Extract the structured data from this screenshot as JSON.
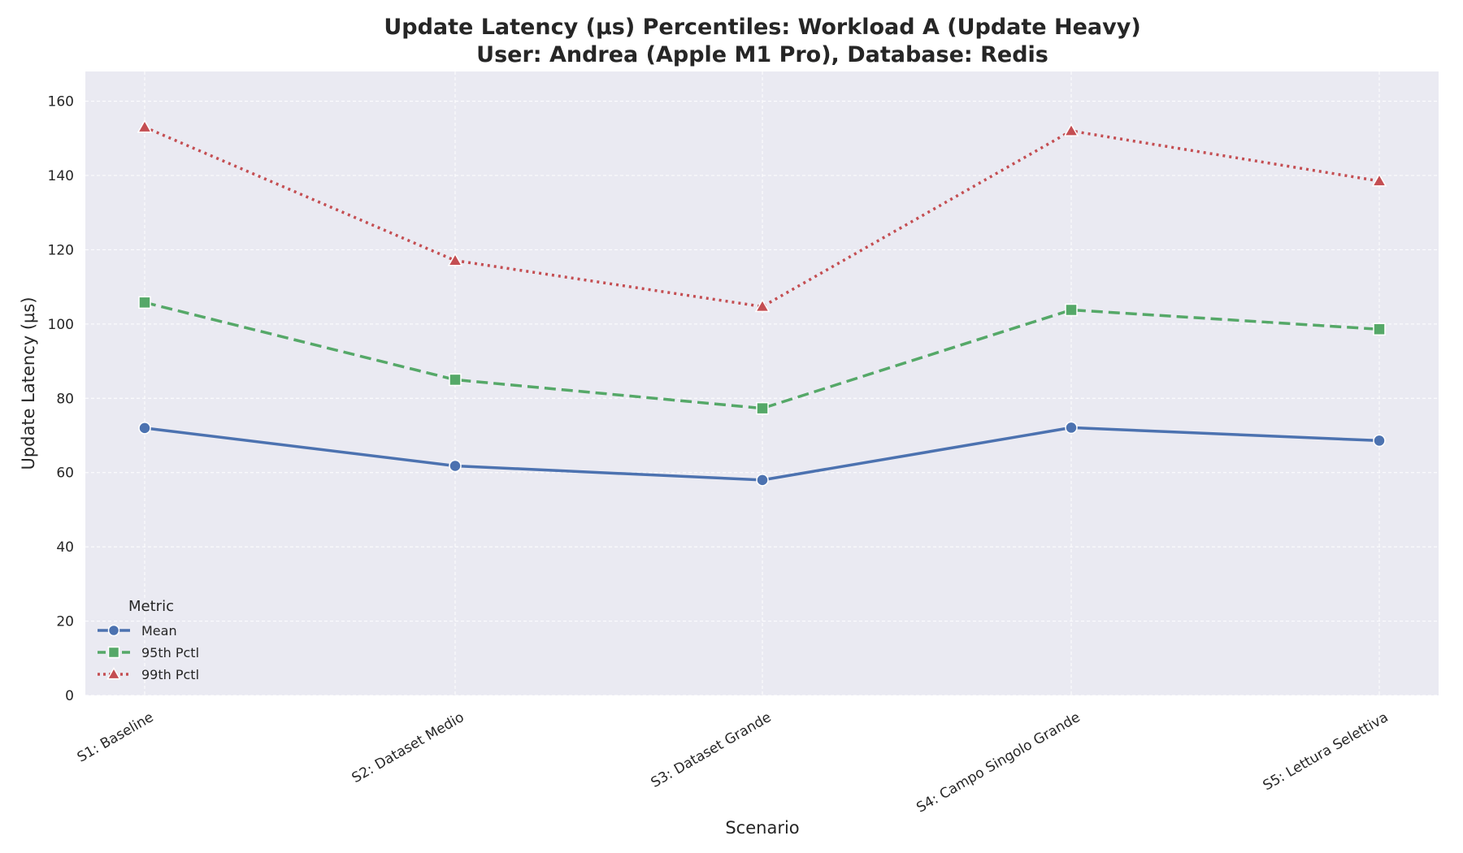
{
  "chart_data": {
    "type": "line",
    "title_line1": "Update Latency (µs) Percentiles: Workload A (Update Heavy)",
    "title_line2": "User: Andrea (Apple M1 Pro), Database: Redis",
    "xlabel": "Scenario",
    "ylabel": "Update Latency (µs)",
    "ylim": [
      0,
      168
    ],
    "yticks": [
      0,
      20,
      40,
      60,
      80,
      100,
      120,
      140,
      160
    ],
    "categories": [
      "S1: Baseline",
      "S2: Dataset Medio",
      "S3: Dataset Grande",
      "S4: Campo Singolo Grande",
      "S5: Lettura Selettiva"
    ],
    "grid": true,
    "legend": {
      "title": "Metric",
      "placement": "lower-left"
    },
    "series": [
      {
        "name": "Mean",
        "values": [
          72.0,
          61.8,
          58.0,
          72.1,
          68.6
        ],
        "color": "#4c72b0",
        "marker": "circle",
        "line_style": "solid"
      },
      {
        "name": "95th Pctl",
        "values": [
          105.8,
          85.0,
          77.3,
          103.8,
          98.6
        ],
        "color": "#55a868",
        "marker": "square",
        "line_style": "dashed"
      },
      {
        "name": "99th Pctl",
        "values": [
          153.0,
          117.1,
          104.7,
          152.0,
          138.5
        ],
        "color": "#c44e52",
        "marker": "triangle",
        "line_style": "dotted"
      }
    ]
  },
  "colors": {
    "plot_background": "#eaeaf2",
    "grid": "#ffffff"
  }
}
